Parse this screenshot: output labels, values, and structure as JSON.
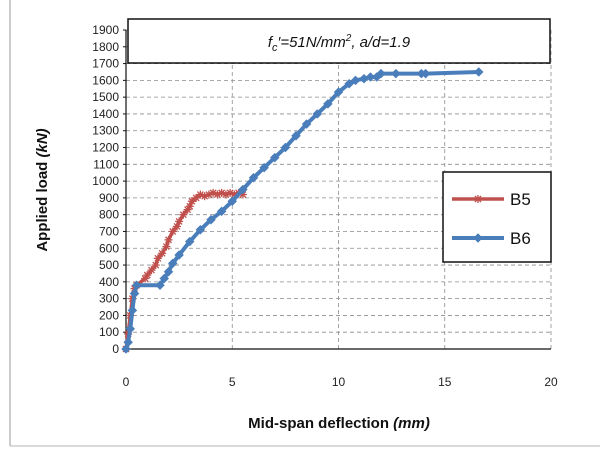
{
  "chart_data": {
    "type": "line",
    "title_parts": [
      "f",
      "c",
      "′=51N/mm",
      "2",
      ", a/d=1.9"
    ],
    "xlabel_main": "Mid-span deflection ",
    "xlabel_unit": "(mm)",
    "ylabel_main": "Applied load ",
    "ylabel_unit": "(kN)",
    "xlim": [
      0,
      20
    ],
    "ylim": [
      0,
      1900
    ],
    "x_ticks": [
      "0",
      "5",
      "10",
      "15",
      "20"
    ],
    "y_ticks": [
      "0",
      "100",
      "200",
      "300",
      "400",
      "500",
      "600",
      "700",
      "800",
      "900",
      "1000",
      "1100",
      "1200",
      "1300",
      "1400",
      "1500",
      "1600",
      "1700",
      "1800",
      "1900"
    ],
    "grid": true,
    "legend_position": "right",
    "series": [
      {
        "name": "B5",
        "color": "#c0504d",
        "marker": "asterisk",
        "x": [
          0,
          0.1,
          0.2,
          0.3,
          0.4,
          0.5,
          0.9,
          1.0,
          1.2,
          1.4,
          1.5,
          1.7,
          1.9,
          2.0,
          2.2,
          2.4,
          2.5,
          2.7,
          2.9,
          3.0,
          3.1,
          3.3,
          3.5,
          3.7,
          3.9,
          4.1,
          4.3,
          4.5,
          4.7,
          4.9,
          5.1,
          5.3,
          5.5
        ],
        "y": [
          0,
          90,
          200,
          300,
          360,
          380,
          420,
          440,
          470,
          500,
          540,
          570,
          610,
          650,
          700,
          730,
          760,
          800,
          830,
          850,
          880,
          900,
          920,
          910,
          920,
          930,
          920,
          930,
          920,
          930,
          920,
          930,
          920
        ]
      },
      {
        "name": "B6",
        "color": "#4a7ebb",
        "marker": "diamond",
        "x": [
          0,
          0.1,
          0.2,
          0.3,
          0.4,
          0.5,
          1.6,
          1.8,
          2.0,
          2.2,
          2.5,
          3.0,
          3.5,
          4.0,
          4.5,
          5.0,
          5.5,
          6.0,
          6.5,
          7.0,
          7.5,
          8.0,
          8.5,
          9.0,
          9.5,
          10.0,
          10.5,
          10.8,
          11.2,
          11.5,
          11.8,
          12.0,
          12.7,
          13.9,
          14.1,
          16.6
        ],
        "y": [
          0,
          40,
          120,
          230,
          330,
          380,
          380,
          420,
          460,
          510,
          560,
          640,
          710,
          770,
          820,
          880,
          950,
          1020,
          1080,
          1140,
          1200,
          1270,
          1340,
          1400,
          1460,
          1530,
          1580,
          1600,
          1610,
          1620,
          1620,
          1640,
          1640,
          1640,
          1640,
          1650
        ]
      }
    ]
  }
}
